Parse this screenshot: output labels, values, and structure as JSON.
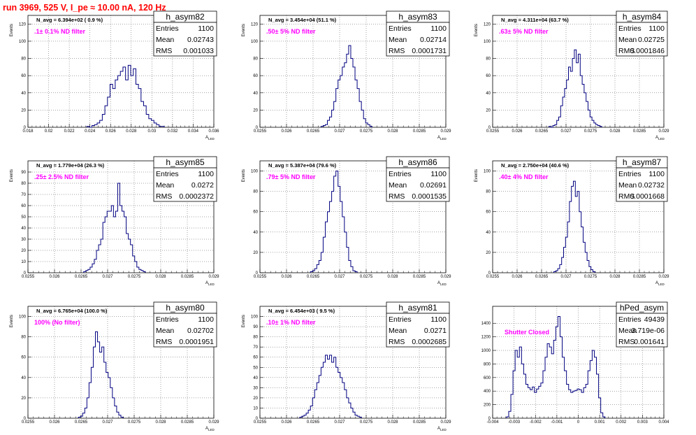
{
  "header": {
    "title": "run 3969,   525 V, I_pe ≈ 10.00 nA, 120 Hz"
  },
  "chart_data": [
    {
      "type": "histogram",
      "name": "h_asym82",
      "ylabel": "Events",
      "xlabel": "A",
      "xlabel_sub": "LED",
      "navg_label": "N_avg = 6.394e+02 ( 0.9 %)",
      "filter_label": ".1± 0.1% ND filter",
      "stats": [
        [
          "Entries",
          "1100"
        ],
        [
          "Mean",
          "0.02743"
        ],
        [
          "RMS",
          "0.001033"
        ]
      ],
      "xlim": [
        0.018,
        0.036
      ],
      "ylim": [
        0,
        130
      ],
      "xticks": [
        0.018,
        0.02,
        0.022,
        0.024,
        0.026,
        0.028,
        0.03,
        0.032,
        0.034,
        0.036
      ],
      "xtick_labels": [
        "0.018",
        "0.02",
        "0.022",
        "0.024",
        "0.026",
        "0.028",
        "0.03",
        "0.032",
        "0.034",
        "0.036"
      ],
      "yticks": [
        0,
        20,
        40,
        60,
        80,
        100,
        120
      ],
      "bin_start": 0.0237,
      "bin_width": 0.00025,
      "counts": [
        1,
        0,
        2,
        3,
        5,
        8,
        15,
        25,
        35,
        50,
        45,
        55,
        60,
        65,
        70,
        55,
        72,
        60,
        68,
        50,
        45,
        30,
        25,
        15,
        10,
        8,
        5,
        3,
        1,
        1
      ]
    },
    {
      "type": "histogram",
      "name": "h_asym83",
      "ylabel": "Events",
      "xlabel": "A",
      "xlabel_sub": "LED",
      "navg_label": "N_avg = 3.454e+04 (51.1 %)",
      "filter_label": ".50± 5% ND filter",
      "stats": [
        [
          "Entries",
          "1100"
        ],
        [
          "Mean",
          "0.02714"
        ],
        [
          "RMS",
          "0.0001731"
        ]
      ],
      "xlim": [
        0.0255,
        0.029
      ],
      "ylim": [
        0,
        130
      ],
      "xticks": [
        0.0255,
        0.026,
        0.0265,
        0.027,
        0.0275,
        0.028,
        0.0285,
        0.029
      ],
      "xtick_labels": [
        "0.0255",
        "0.026",
        "0.0265",
        "0.027",
        "0.0275",
        "0.028",
        "0.0285",
        "0.029"
      ],
      "yticks": [
        0,
        20,
        40,
        60,
        80,
        100,
        120
      ],
      "bin_start": 0.02665,
      "bin_width": 4e-05,
      "counts": [
        1,
        2,
        3,
        8,
        12,
        20,
        30,
        45,
        55,
        60,
        70,
        75,
        85,
        95,
        80,
        70,
        55,
        45,
        30,
        20,
        10,
        5,
        3,
        1
      ]
    },
    {
      "type": "histogram",
      "name": "h_asym84",
      "ylabel": "Events",
      "xlabel": "A",
      "xlabel_sub": "LED",
      "navg_label": "N_avg = 4.311e+04 (63.7 %)",
      "filter_label": ".63± 5% ND filter",
      "stats": [
        [
          "Entries",
          "1100"
        ],
        [
          "Mean",
          "0.02725"
        ],
        [
          "RMS",
          "0.0001846"
        ]
      ],
      "xlim": [
        0.0255,
        0.029
      ],
      "ylim": [
        0,
        130
      ],
      "xticks": [
        0.0255,
        0.026,
        0.0265,
        0.027,
        0.0275,
        0.028,
        0.0285,
        0.029
      ],
      "xtick_labels": [
        "0.0255",
        "0.026",
        "0.0265",
        "0.027",
        "0.0275",
        "0.028",
        "0.0285",
        "0.029"
      ],
      "yticks": [
        0,
        20,
        40,
        60,
        80,
        100,
        120
      ],
      "bin_start": 0.02665,
      "bin_width": 4e-05,
      "counts": [
        1,
        0,
        2,
        3,
        8,
        12,
        25,
        35,
        45,
        55,
        70,
        65,
        80,
        90,
        75,
        85,
        60,
        50,
        40,
        30,
        20,
        12,
        8,
        5,
        3,
        2,
        1
      ]
    },
    {
      "type": "histogram",
      "name": "h_asym85",
      "ylabel": "Events",
      "xlabel": "A",
      "xlabel_sub": "LED",
      "navg_label": "N_avg = 1.779e+04 (26.3 %)",
      "filter_label": ".25± 2.5% ND filter",
      "stats": [
        [
          "Entries",
          "1100"
        ],
        [
          "Mean",
          "0.0272"
        ],
        [
          "RMS",
          "0.0002372"
        ]
      ],
      "xlim": [
        0.0255,
        0.029
      ],
      "ylim": [
        0,
        100
      ],
      "xticks": [
        0.0255,
        0.026,
        0.0265,
        0.027,
        0.0275,
        0.028,
        0.0285,
        0.029
      ],
      "xtick_labels": [
        "0.0255",
        "0.026",
        "0.0265",
        "0.027",
        "0.0275",
        "0.028",
        "0.0285",
        "0.029"
      ],
      "yticks": [
        0,
        10,
        20,
        30,
        40,
        50,
        60,
        70,
        80,
        90
      ],
      "bin_start": 0.02655,
      "bin_width": 4e-05,
      "counts": [
        1,
        2,
        3,
        5,
        8,
        12,
        20,
        25,
        30,
        45,
        50,
        55,
        55,
        60,
        50,
        55,
        80,
        60,
        55,
        50,
        35,
        30,
        25,
        15,
        10,
        5,
        3,
        2,
        1
      ]
    },
    {
      "type": "histogram",
      "name": "h_asym86",
      "ylabel": "Events",
      "xlabel": "A",
      "xlabel_sub": "LED",
      "navg_label": "N_avg = 5.387e+04 (79.6 %)",
      "filter_label": ".79± 5% ND filter",
      "stats": [
        [
          "Entries",
          "1100"
        ],
        [
          "Mean",
          "0.02691"
        ],
        [
          "RMS",
          "0.0001535"
        ]
      ],
      "xlim": [
        0.0255,
        0.029
      ],
      "ylim": [
        0,
        110
      ],
      "xticks": [
        0.0255,
        0.026,
        0.0265,
        0.027,
        0.0275,
        0.028,
        0.0285,
        0.029
      ],
      "xtick_labels": [
        "0.0255",
        "0.026",
        "0.0265",
        "0.027",
        "0.0275",
        "0.028",
        "0.0285",
        "0.029"
      ],
      "yticks": [
        0,
        20,
        40,
        60,
        80,
        100
      ],
      "bin_start": 0.02645,
      "bin_width": 4e-05,
      "counts": [
        1,
        2,
        4,
        8,
        12,
        20,
        35,
        50,
        60,
        70,
        80,
        95,
        100,
        85,
        70,
        55,
        40,
        25,
        12,
        6,
        2,
        1
      ]
    },
    {
      "type": "histogram",
      "name": "h_asym87",
      "ylabel": "Events",
      "xlabel": "A",
      "xlabel_sub": "LED",
      "navg_label": "N_avg = 2.750e+04 (40.6 %)",
      "filter_label": ".40± 4% ND filter",
      "stats": [
        [
          "Entries",
          "1100"
        ],
        [
          "Mean",
          "0.02732"
        ],
        [
          "RMS",
          "0.0001668"
        ]
      ],
      "xlim": [
        0.0255,
        0.029
      ],
      "ylim": [
        0,
        110
      ],
      "xticks": [
        0.0255,
        0.026,
        0.0265,
        0.027,
        0.0275,
        0.028,
        0.0285,
        0.029
      ],
      "xtick_labels": [
        "0.0255",
        "0.026",
        "0.0265",
        "0.027",
        "0.0275",
        "0.028",
        "0.0285",
        "0.029"
      ],
      "yticks": [
        0,
        20,
        40,
        60,
        80,
        100
      ],
      "bin_start": 0.02675,
      "bin_width": 4e-05,
      "counts": [
        1,
        2,
        4,
        8,
        15,
        25,
        35,
        50,
        70,
        85,
        90,
        75,
        80,
        60,
        45,
        30,
        20,
        12,
        6,
        3,
        1
      ]
    },
    {
      "type": "histogram",
      "name": "h_asym80",
      "ylabel": "Events",
      "xlabel": "A",
      "xlabel_sub": "LED",
      "navg_label": "N_avg = 6.765e+04 (100.0 %)",
      "filter_label": "100% (No filter)",
      "stats": [
        [
          "Entries",
          "1100"
        ],
        [
          "Mean",
          "0.02702"
        ],
        [
          "RMS",
          "0.0001951"
        ]
      ],
      "xlim": [
        0.0255,
        0.029
      ],
      "ylim": [
        0,
        110
      ],
      "xticks": [
        0.0255,
        0.026,
        0.0265,
        0.027,
        0.0275,
        0.028,
        0.0285,
        0.029
      ],
      "xtick_labels": [
        "0.0255",
        "0.026",
        "0.0265",
        "0.027",
        "0.0275",
        "0.028",
        "0.0285",
        "0.029"
      ],
      "yticks": [
        0,
        20,
        40,
        60,
        80,
        100
      ],
      "bin_start": 0.02645,
      "bin_width": 4e-05,
      "counts": [
        1,
        2,
        5,
        10,
        20,
        35,
        50,
        70,
        85,
        75,
        65,
        70,
        55,
        45,
        40,
        30,
        20,
        12,
        6,
        3,
        1
      ]
    },
    {
      "type": "histogram",
      "name": "h_asym81",
      "ylabel": "Events",
      "xlabel": "A",
      "xlabel_sub": "LED",
      "navg_label": "N_avg = 6.454e+03 ( 9.5 %)",
      "filter_label": ".10± 1% ND filter",
      "stats": [
        [
          "Entries",
          "1100"
        ],
        [
          "Mean",
          "0.0271"
        ],
        [
          "RMS",
          "0.0002685"
        ]
      ],
      "xlim": [
        0.0255,
        0.029
      ],
      "ylim": [
        0,
        110
      ],
      "xticks": [
        0.0255,
        0.026,
        0.0265,
        0.027,
        0.0275,
        0.028,
        0.0285,
        0.029
      ],
      "xtick_labels": [
        "0.0255",
        "0.026",
        "0.0265",
        "0.027",
        "0.0275",
        "0.028",
        "0.0285",
        "0.029"
      ],
      "yticks": [
        0,
        10,
        20,
        30,
        40,
        50,
        60,
        70,
        80,
        90,
        100
      ],
      "bin_start": 0.02625,
      "bin_width": 4e-05,
      "counts": [
        1,
        2,
        3,
        5,
        8,
        12,
        20,
        28,
        35,
        42,
        50,
        55,
        62,
        58,
        62,
        55,
        60,
        50,
        45,
        40,
        35,
        28,
        20,
        15,
        10,
        6,
        3,
        2,
        1
      ]
    },
    {
      "type": "histogram",
      "name": "hPed_asym",
      "ylabel": "",
      "xlabel": "",
      "xlabel_sub": "",
      "navg_label": "",
      "filter_label": "Shutter Closed",
      "stats": [
        [
          "Entries",
          "49439"
        ],
        [
          "Mean",
          "3.719e-06"
        ],
        [
          "RMS",
          "0.001641"
        ]
      ],
      "xlim": [
        -0.004,
        0.004
      ],
      "ylim": [
        0,
        1650
      ],
      "xticks": [
        -0.004,
        -0.003,
        -0.002,
        -0.001,
        0,
        0.001,
        0.002,
        0.003,
        0.004
      ],
      "xtick_labels": [
        "-0.004",
        "-0.003",
        "-0.002",
        "-0.001",
        "0",
        "0.001",
        "0.002",
        "0.003",
        "0.004"
      ],
      "yticks": [
        0,
        200,
        400,
        600,
        800,
        1000,
        1200,
        1400
      ],
      "bin_start": -0.00335,
      "bin_width": 0.0001,
      "counts": [
        20,
        100,
        350,
        700,
        1000,
        900,
        1050,
        800,
        650,
        500,
        450,
        420,
        460,
        380,
        430,
        470,
        520,
        700,
        900,
        1100,
        1050,
        950,
        1150,
        1350,
        1500,
        1200,
        900,
        700,
        500,
        420,
        380,
        400,
        410,
        430,
        420,
        380,
        450,
        500,
        700,
        850,
        1000,
        900,
        650,
        300,
        80,
        20
      ]
    }
  ]
}
